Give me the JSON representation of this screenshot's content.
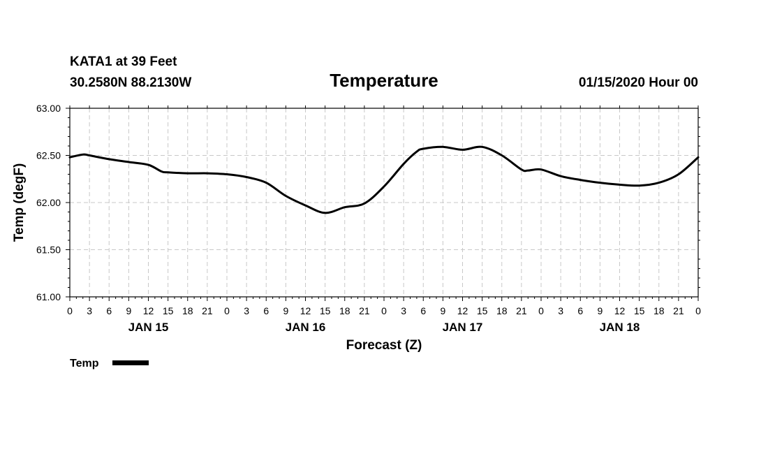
{
  "header": {
    "station": "KATA1 at 39 Feet",
    "coords": "30.2580N 88.2130W",
    "title": "Temperature",
    "timestamp": "01/15/2020 Hour 00"
  },
  "chart_data": {
    "type": "line",
    "title": "Temperature",
    "xlabel": "Forecast (Z)",
    "ylabel": "Temp (degF)",
    "ylim": [
      61.0,
      63.0
    ],
    "yticks": [
      "61.00",
      "61.50",
      "62.00",
      "62.50",
      "63.00"
    ],
    "xlim": [
      "2020-01-15 00Z",
      "2020-01-19 00Z"
    ],
    "x_tick_labels": [
      "0",
      "3",
      "6",
      "9",
      "12",
      "15",
      "18",
      "21",
      "0",
      "3",
      "6",
      "9",
      "12",
      "15",
      "18",
      "21",
      "0",
      "3",
      "6",
      "9",
      "12",
      "15",
      "18",
      "21",
      "0",
      "3",
      "6",
      "9",
      "12",
      "15",
      "18",
      "21",
      "0"
    ],
    "date_labels": [
      "JAN 15",
      "JAN 16",
      "JAN 17",
      "JAN 18"
    ],
    "grid": true,
    "legend": "bottom-left",
    "series": [
      {
        "name": "Temp",
        "color": "#000000",
        "x": [
          "2020-01-15 00Z",
          "2020-01-15 02Z",
          "2020-01-15 03Z",
          "2020-01-15 06Z",
          "2020-01-15 09Z",
          "2020-01-15 12Z",
          "2020-01-15 14Z",
          "2020-01-15 15Z",
          "2020-01-15 18Z",
          "2020-01-15 21Z",
          "2020-01-16 00Z",
          "2020-01-16 03Z",
          "2020-01-16 06Z",
          "2020-01-16 09Z",
          "2020-01-16 12Z",
          "2020-01-16 15Z",
          "2020-01-16 18Z",
          "2020-01-16 21Z",
          "2020-01-17 00Z",
          "2020-01-17 03Z",
          "2020-01-17 05Z",
          "2020-01-17 06Z",
          "2020-01-17 09Z",
          "2020-01-17 12Z",
          "2020-01-17 15Z",
          "2020-01-17 18Z",
          "2020-01-17 21Z",
          "2020-01-17 22Z",
          "2020-01-18 00Z",
          "2020-01-18 03Z",
          "2020-01-18 06Z",
          "2020-01-18 09Z",
          "2020-01-18 12Z",
          "2020-01-18 15Z",
          "2020-01-18 18Z",
          "2020-01-18 21Z",
          "2020-01-19 00Z"
        ],
        "values": [
          62.48,
          62.51,
          62.5,
          62.46,
          62.43,
          62.4,
          62.33,
          62.32,
          62.31,
          62.31,
          62.3,
          62.27,
          62.21,
          62.07,
          61.97,
          61.89,
          61.95,
          61.99,
          62.17,
          62.41,
          62.54,
          62.57,
          62.59,
          62.56,
          62.59,
          62.5,
          62.35,
          62.34,
          62.35,
          62.28,
          62.24,
          62.21,
          62.19,
          62.18,
          62.21,
          62.3,
          62.48
        ]
      }
    ]
  }
}
